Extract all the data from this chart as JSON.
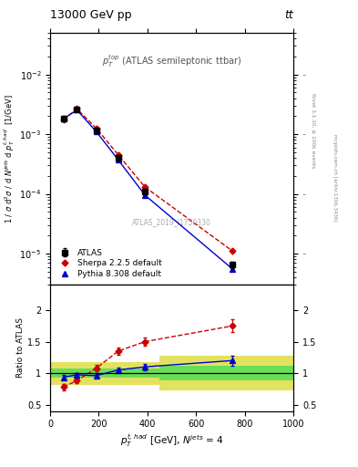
{
  "title_left": "13000 GeV pp",
  "title_right": "tt",
  "annotation": "ATLAS_2019_I1750330",
  "right_label_top": "Rivet 3.1.10, ≥ 100k events",
  "right_label_bottom": "mcplots.cern.ch [arXiv:1306.3436]",
  "ylabel_main": "1 / σ d²σ / d N⁽ʲᵉᵗˢ d pᵀˢ·ʰᵃᵈ  [1/GeV]",
  "ylabel_ratio": "Ratio to ATLAS",
  "xlabel": "p_T^{t,had} [GeV], N^{jets} = 4",
  "xlim": [
    0,
    1000
  ],
  "ylim_main": [
    3e-06,
    0.05
  ],
  "ylim_ratio": [
    0.4,
    2.4
  ],
  "yticks_ratio": [
    0.5,
    1.0,
    1.5,
    2.0
  ],
  "atlas_x": [
    55,
    110,
    190,
    280,
    390,
    750
  ],
  "atlas_y": [
    0.00185,
    0.0026,
    0.00115,
    0.0004,
    0.00011,
    6.5e-06
  ],
  "atlas_yerr_lo": [
    0.00015,
    0.0002,
    0.0001,
    3.5e-05,
    1.2e-05,
    8e-07
  ],
  "atlas_yerr_hi": [
    0.00015,
    0.0002,
    0.0001,
    3.5e-05,
    1.2e-05,
    8e-07
  ],
  "pythia_x": [
    55,
    110,
    190,
    280,
    390,
    750
  ],
  "pythia_y": [
    0.0018,
    0.00255,
    0.0011,
    0.00037,
    9.5e-05,
    5.5e-06
  ],
  "sherpa_x": [
    55,
    110,
    190,
    280,
    390,
    750
  ],
  "sherpa_y": [
    0.00175,
    0.00265,
    0.00125,
    0.00045,
    0.00013,
    1.1e-05
  ],
  "pythia_ratio": [
    0.935,
    0.975,
    0.96,
    1.05,
    1.1,
    1.2
  ],
  "sherpa_ratio": [
    0.78,
    0.88,
    1.08,
    1.35,
    1.5,
    1.75
  ],
  "pythia_ratio_err": [
    0.04,
    0.03,
    0.03,
    0.04,
    0.05,
    0.08
  ],
  "sherpa_ratio_err": [
    0.05,
    0.04,
    0.05,
    0.06,
    0.07,
    0.1
  ],
  "band1_xlo": 0,
  "band1_xhi": 450,
  "band1_green_ylo": 0.925,
  "band1_green_yhi": 1.075,
  "band1_yellow_ylo": 0.82,
  "band1_yellow_yhi": 1.18,
  "band2_xlo": 450,
  "band2_xhi": 1000,
  "band2_green_ylo": 0.88,
  "band2_green_yhi": 1.12,
  "band2_yellow_ylo": 0.72,
  "band2_yellow_yhi": 1.28,
  "atlas_color": "#000000",
  "pythia_color": "#0000cc",
  "sherpa_color": "#cc0000",
  "green_band_color": "#55dd55",
  "yellow_band_color": "#dddd44",
  "legend_labels": [
    "ATLAS",
    "Pythia 8.308 default",
    "Sherpa 2.2.5 default"
  ]
}
